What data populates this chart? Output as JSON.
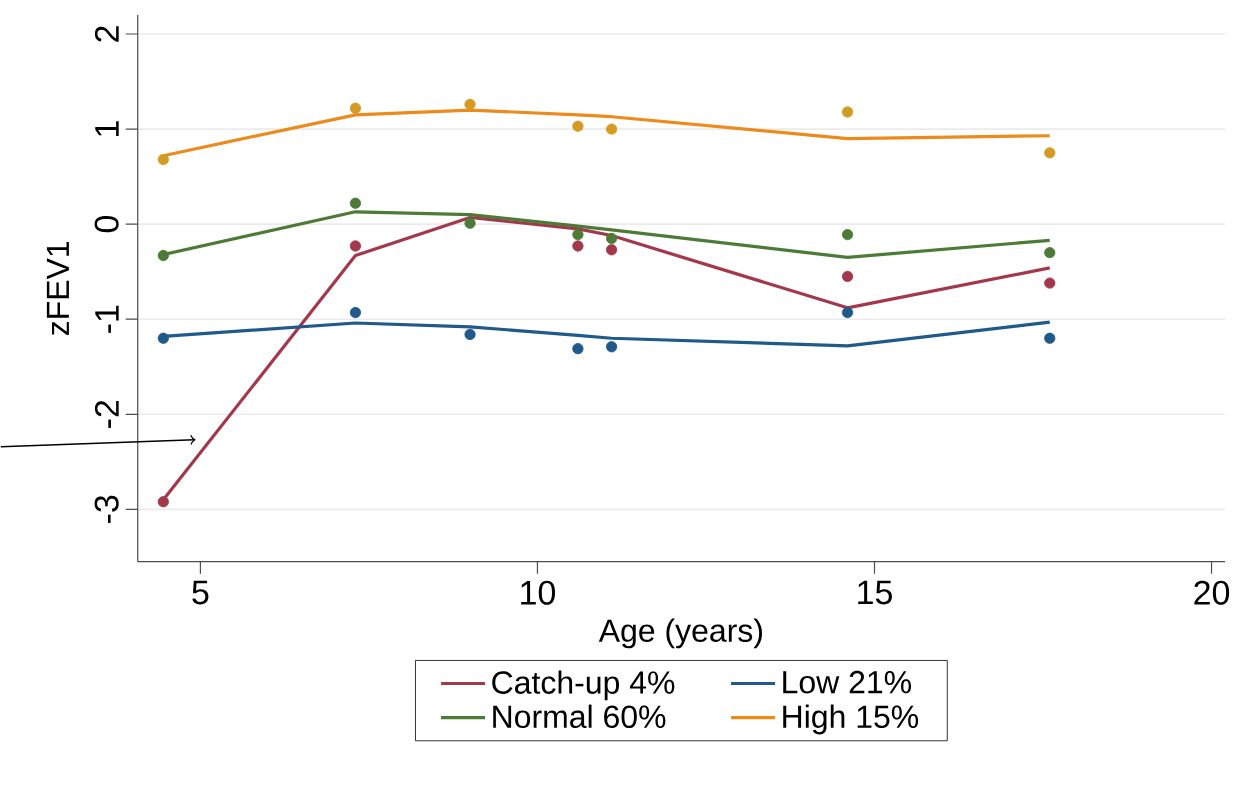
{
  "chart_data": {
    "type": "line",
    "xlabel": "Age (years)",
    "ylabel": "zFEV1",
    "xlim": [
      4.07,
      20.2
    ],
    "ylim": [
      -3.55,
      2.2
    ],
    "xticks": [
      5,
      10,
      15,
      20
    ],
    "yticks": [
      -3,
      -2,
      -1,
      0,
      1,
      2
    ],
    "grid": "y",
    "legend": "bottom",
    "marker": "none",
    "x": [
      4.45,
      7.3,
      9.0,
      10.6,
      11.1,
      14.6,
      17.6
    ],
    "series": [
      {
        "name": "Catch-up 4%",
        "color": "#a3384c",
        "values": [
          -2.9,
          -0.33,
          0.07,
          -0.05,
          -0.12,
          -0.88,
          -0.46
        ]
      },
      {
        "name": "Low 21%",
        "color": "#1f5a8a",
        "values": [
          -1.18,
          -1.04,
          -1.08,
          -1.17,
          -1.2,
          -1.28,
          -1.03
        ]
      },
      {
        "name": "Normal 60%",
        "color": "#4d7a36",
        "values": [
          -0.32,
          0.13,
          0.1,
          -0.02,
          -0.06,
          -0.35,
          -0.17
        ]
      },
      {
        "name": "High 15%",
        "color": "#ec8a1c",
        "values": [
          0.72,
          1.15,
          1.2,
          1.15,
          1.13,
          0.9,
          0.93
        ]
      },
      {
        "color": "#a3384c",
        "type": "scatter",
        "marker": "circle",
        "values": [
          -2.92,
          -0.23,
          null,
          -0.23,
          -0.27,
          -0.55,
          -0.62
        ]
      },
      {
        "color": "#1f5a8a",
        "type": "scatter",
        "marker": "circle",
        "values": [
          -1.2,
          -0.93,
          -1.16,
          -1.31,
          -1.29,
          -0.93,
          -1.2
        ]
      },
      {
        "color": "#4d7a36",
        "type": "scatter",
        "marker": "circle",
        "values": [
          -0.33,
          0.22,
          0.01,
          -0.11,
          -0.15,
          -0.11,
          -0.3
        ]
      },
      {
        "color": "#d39a24",
        "type": "scatter",
        "marker": "circle",
        "values": [
          0.68,
          1.22,
          1.26,
          1.03,
          1.0,
          1.18,
          0.75
        ]
      }
    ]
  }
}
